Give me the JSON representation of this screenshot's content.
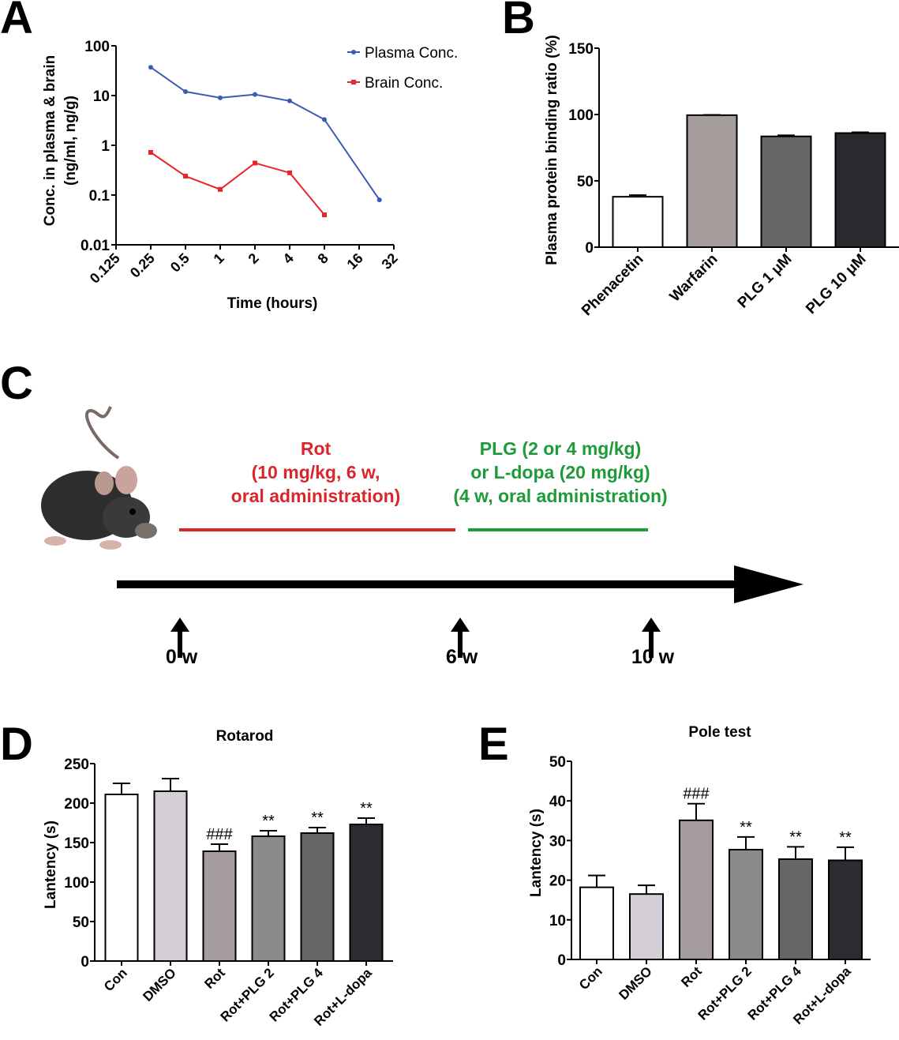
{
  "panels": {
    "a": "A",
    "b": "B",
    "c": "C",
    "d": "D",
    "e": "E"
  },
  "chart_data": [
    {
      "panel": "A",
      "type": "line",
      "title": "",
      "xlabel": "Time (hours)",
      "ylabel": [
        "Conc. in plasma & brain",
        "(ng/ml, ng/g)"
      ],
      "x_scale": "log2",
      "y_scale": "log10",
      "xlim": [
        0.125,
        32
      ],
      "ylim": [
        0.01,
        100
      ],
      "x_ticks": [
        "0.125",
        "0.25",
        "0.5",
        "1",
        "2",
        "4",
        "8",
        "16",
        "32"
      ],
      "y_ticks": [
        "0.01",
        "0.1",
        "1",
        "10",
        "100"
      ],
      "legend_position": "top-right",
      "grid": false,
      "series": [
        {
          "name": "Plasma Conc.",
          "color": "#3a5bb5",
          "marker": "circle",
          "x": [
            0.25,
            0.5,
            1,
            2,
            4,
            8,
            24
          ],
          "y": [
            37,
            12,
            9,
            10.5,
            7.8,
            3.3,
            0.08
          ]
        },
        {
          "name": "Brain Conc.",
          "color": "#e8252a",
          "marker": "square",
          "x": [
            0.25,
            0.5,
            1,
            2,
            4,
            8
          ],
          "y": [
            0.72,
            0.24,
            0.13,
            0.44,
            0.28,
            0.04
          ]
        }
      ]
    },
    {
      "panel": "B",
      "type": "bar",
      "title": "",
      "xlabel": "",
      "ylabel": "Plasma protein binding ratio (%)",
      "ylim": [
        0,
        150
      ],
      "y_ticks": [
        "0",
        "50",
        "100",
        "150"
      ],
      "categories": [
        "Phenacetin",
        "Warfarin",
        "PLG 1 μM",
        "PLG 10 μM"
      ],
      "values": [
        38,
        99.5,
        83.5,
        86
      ],
      "errors": [
        1.2,
        0.2,
        0.8,
        0.6
      ],
      "colors": [
        "#ffffff",
        "#a59c9c",
        "#666666",
        "#2a2a2e"
      ],
      "annotations": [
        "",
        "",
        "",
        ""
      ]
    },
    {
      "panel": "D",
      "type": "bar",
      "title": "Rotarod",
      "xlabel": "",
      "ylabel": "Lantency (s)",
      "ylim": [
        0,
        250
      ],
      "y_ticks": [
        "0",
        "50",
        "100",
        "150",
        "200",
        "250"
      ],
      "categories": [
        "Con",
        "DMSO",
        "Rot",
        "Rot+PLG 2",
        "Rot+PLG 4",
        "Rot+L-dopa"
      ],
      "values": [
        211,
        215,
        139,
        158,
        162,
        173
      ],
      "errors": [
        14,
        16,
        9,
        7,
        7,
        8
      ],
      "colors": [
        "#ffffff",
        "#d4ced6",
        "#a59d9d",
        "#8a8a8a",
        "#666666",
        "#2b2b30"
      ],
      "annotations": [
        "",
        "",
        "###",
        "**",
        "**",
        "**"
      ]
    },
    {
      "panel": "E",
      "type": "bar",
      "title": "Pole test",
      "xlabel": "",
      "ylabel": "Lantency (s)",
      "ylim": [
        0,
        50
      ],
      "y_ticks": [
        "0",
        "10",
        "20",
        "30",
        "40",
        "50"
      ],
      "categories": [
        "Con",
        "DMSO",
        "Rot",
        "Rot+PLG 2",
        "Rot+PLG 4",
        "Rot+L-dopa"
      ],
      "values": [
        18.2,
        16.5,
        35.1,
        27.7,
        25.3,
        25
      ],
      "errors": [
        3,
        2.2,
        4.2,
        3.2,
        3.1,
        3.3
      ],
      "colors": [
        "#ffffff",
        "#d4ced6",
        "#a59d9d",
        "#8a8a8a",
        "#666666",
        "#2b2b30"
      ],
      "annotations": [
        "",
        "",
        "###",
        "**",
        "**",
        "**"
      ]
    }
  ],
  "panel_c": {
    "rot_text": [
      "Rot",
      "(10 mg/kg, 6 w,",
      "oral administration)"
    ],
    "plg_text": [
      "PLG (2 or 4 mg/kg)",
      "or L-dopa (20 mg/kg)",
      "(4 w, oral administration)"
    ],
    "rot_color": "#d9262b",
    "plg_color": "#1f9a3a",
    "timepoints": [
      "0 w",
      "6 w",
      "10 w"
    ],
    "image": "mouse"
  }
}
